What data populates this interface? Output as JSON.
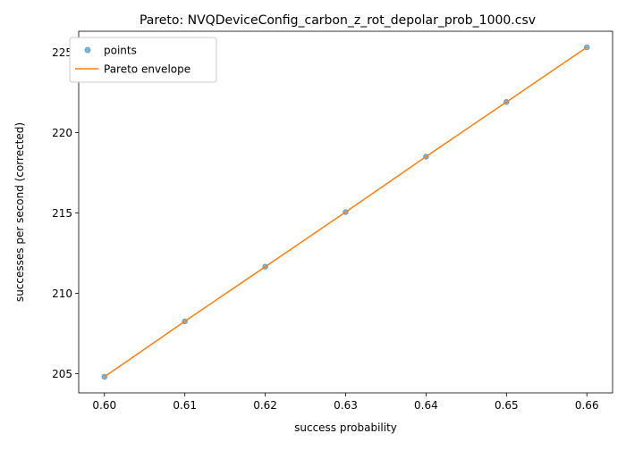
{
  "chart_data": {
    "type": "scatter",
    "title": "Pareto: NVQDeviceConfig_carbon_z_rot_depolar_prob_1000.csv",
    "xlabel": "success probability",
    "ylabel": "successes per second (corrected)",
    "xlim": [
      0.5968,
      0.6632
    ],
    "ylim": [
      203.8,
      226.3
    ],
    "xticks": [
      0.6,
      0.61,
      0.62,
      0.63,
      0.64,
      0.65,
      0.66
    ],
    "xtick_labels": [
      "0.60",
      "0.61",
      "0.62",
      "0.63",
      "0.64",
      "0.65",
      "0.66"
    ],
    "yticks": [
      205,
      210,
      215,
      220,
      225
    ],
    "ytick_labels": [
      "205",
      "210",
      "215",
      "220",
      "225"
    ],
    "grid": false,
    "legend_position": "top-left",
    "series": [
      {
        "name": "points",
        "kind": "scatter",
        "color": "#1f77b4",
        "x": [
          0.6,
          0.61,
          0.62,
          0.63,
          0.64,
          0.65,
          0.66
        ],
        "y": [
          204.8,
          208.25,
          211.65,
          215.05,
          218.5,
          221.9,
          225.3
        ]
      },
      {
        "name": "Pareto envelope",
        "kind": "line",
        "color": "#ff7f0e",
        "x": [
          0.6,
          0.61,
          0.62,
          0.63,
          0.64,
          0.65,
          0.66
        ],
        "y": [
          204.8,
          208.25,
          211.65,
          215.05,
          218.5,
          221.9,
          225.3
        ]
      }
    ]
  }
}
